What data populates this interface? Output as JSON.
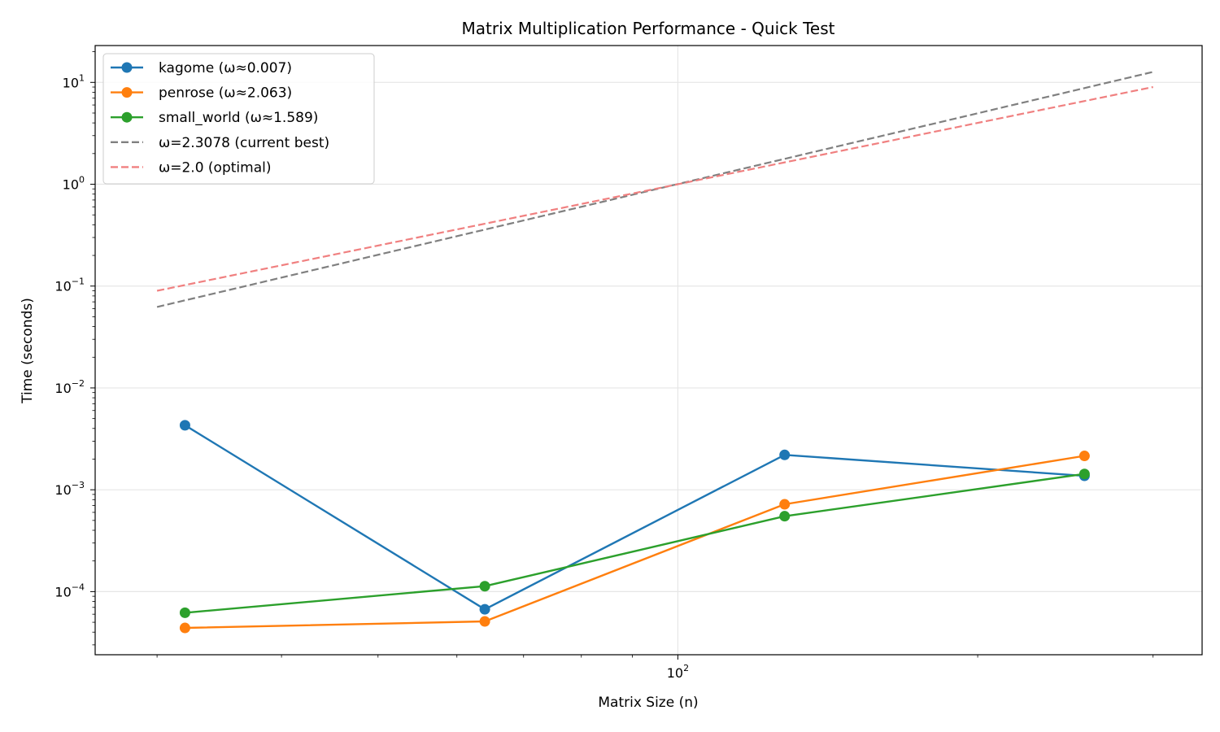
{
  "chart_data": {
    "type": "line",
    "title": "Matrix Multiplication Performance - Quick Test",
    "xlabel": "Matrix Size (n)",
    "ylabel": "Time (seconds)",
    "xscale": "log",
    "yscale": "log",
    "xlim": [
      26,
      336
    ],
    "ylim": [
      2.4e-05,
      23
    ],
    "x_ticks": [
      {
        "value": 100,
        "base": "10",
        "exp": "2"
      }
    ],
    "x_minor_ticks": [
      30,
      40,
      50,
      60,
      70,
      80,
      90,
      200,
      300
    ],
    "y_ticks": [
      {
        "value": 0.0001,
        "base": "10",
        "exp": "−4"
      },
      {
        "value": 0.001,
        "base": "10",
        "exp": "−3"
      },
      {
        "value": 0.01,
        "base": "10",
        "exp": "−2"
      },
      {
        "value": 0.1,
        "base": "10",
        "exp": "−1"
      },
      {
        "value": 1,
        "base": "10",
        "exp": "0"
      },
      {
        "value": 10,
        "base": "10",
        "exp": "1"
      }
    ],
    "grid": true,
    "legend_position": "top-left",
    "series": [
      {
        "name": "kagome (ω≈0.007)",
        "color": "#1f77b4",
        "style": "solid",
        "marker": true,
        "x": [
          32,
          64,
          128,
          256
        ],
        "y": [
          0.0043,
          6.7e-05,
          0.0022,
          0.00137
        ]
      },
      {
        "name": "penrose (ω≈2.063)",
        "color": "#ff7f0e",
        "style": "solid",
        "marker": true,
        "x": [
          32,
          64,
          128,
          256
        ],
        "y": [
          4.4e-05,
          5.1e-05,
          0.00072,
          0.00215
        ]
      },
      {
        "name": "small_world (ω≈1.589)",
        "color": "#2ca02c",
        "style": "solid",
        "marker": true,
        "x": [
          32,
          64,
          128,
          256
        ],
        "y": [
          6.2e-05,
          0.000113,
          0.00055,
          0.00143
        ]
      },
      {
        "name": "ω=2.3078 (current best)",
        "color": "#808080",
        "style": "dashed",
        "marker": false,
        "x": [
          30,
          300
        ],
        "y": [
          0.0624,
          12.68
        ]
      },
      {
        "name": "ω=2.0 (optimal)",
        "color": "#f08080",
        "style": "dashed",
        "marker": false,
        "x": [
          30,
          300
        ],
        "y": [
          0.09,
          9.0
        ]
      }
    ]
  }
}
